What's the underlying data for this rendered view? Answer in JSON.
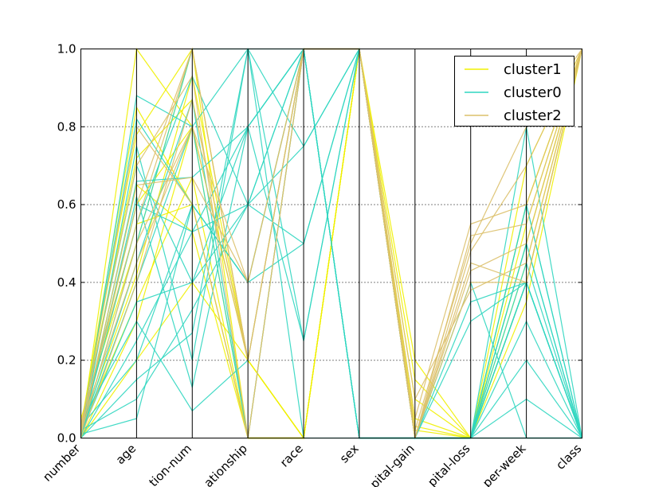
{
  "chart_data": {
    "type": "line",
    "subtype": "parallel-coordinates",
    "title": "",
    "categories": [
      "number",
      "age",
      "education-num",
      "relationship",
      "race",
      "sex",
      "capital-gain",
      "capital-loss",
      "hours-per-week",
      "class"
    ],
    "visible_category_labels": [
      "number",
      "age",
      "tion-num",
      "ationship",
      "race",
      "sex",
      "pital-gain",
      "pital-loss",
      "per-week",
      "class"
    ],
    "ylim": [
      0.0,
      1.0
    ],
    "yticks": [
      "0.0",
      "0.2",
      "0.4",
      "0.6",
      "0.8",
      "1.0"
    ],
    "grid": true,
    "legend_position": "top-right",
    "series": [
      {
        "name": "cluster1",
        "color": "#f0f000",
        "lines": [
          [
            0.01,
            1.0,
            0.8,
            0.0,
            0.0,
            1.0,
            0.0,
            0.0,
            0.4,
            1.0
          ],
          [
            0.03,
            0.78,
            1.0,
            0.2,
            0.0,
            1.0,
            0.02,
            0.0,
            0.6,
            1.0
          ],
          [
            0.02,
            0.55,
            0.6,
            0.0,
            0.0,
            1.0,
            0.15,
            0.0,
            0.4,
            1.0
          ],
          [
            0.0,
            0.3,
            0.8,
            0.2,
            0.0,
            1.0,
            0.0,
            0.0,
            0.5,
            1.0
          ],
          [
            0.01,
            0.65,
            0.53,
            0.0,
            0.0,
            1.0,
            0.05,
            0.0,
            0.45,
            1.0
          ],
          [
            0.02,
            0.42,
            0.93,
            0.2,
            0.0,
            1.0,
            0.0,
            0.0,
            0.6,
            1.0
          ],
          [
            0.03,
            0.85,
            0.6,
            0.0,
            0.0,
            1.0,
            0.1,
            0.0,
            0.4,
            1.0
          ],
          [
            0.0,
            0.2,
            0.4,
            0.2,
            0.0,
            1.0,
            0.0,
            0.0,
            0.35,
            1.0
          ],
          [
            0.05,
            0.5,
            1.0,
            0.0,
            0.0,
            1.0,
            0.2,
            0.0,
            0.5,
            1.0
          ],
          [
            0.01,
            0.6,
            0.8,
            0.2,
            0.0,
            1.0,
            0.0,
            0.0,
            0.4,
            1.0
          ],
          [
            0.02,
            0.35,
            0.67,
            0.0,
            0.0,
            1.0,
            0.03,
            0.0,
            0.55,
            1.0
          ],
          [
            0.03,
            0.72,
            0.87,
            0.2,
            0.0,
            1.0,
            0.0,
            0.0,
            0.7,
            1.0
          ]
        ]
      },
      {
        "name": "cluster0",
        "color": "#2fd6c0",
        "lines": [
          [
            0.0,
            0.88,
            0.8,
            1.0,
            1.0,
            0.0,
            0.0,
            0.0,
            0.4,
            0.0
          ],
          [
            0.02,
            0.6,
            0.53,
            0.8,
            1.0,
            0.0,
            0.0,
            0.4,
            0.0,
            0.0
          ],
          [
            0.01,
            0.35,
            0.4,
            0.6,
            0.75,
            1.0,
            0.0,
            0.0,
            0.6,
            0.0
          ],
          [
            0.03,
            0.2,
            0.6,
            0.4,
            1.0,
            0.0,
            0.0,
            0.0,
            0.4,
            0.0
          ],
          [
            0.0,
            0.75,
            0.2,
            1.0,
            0.25,
            1.0,
            0.0,
            0.0,
            0.0,
            0.0
          ],
          [
            0.01,
            0.45,
            0.87,
            0.0,
            1.0,
            0.0,
            0.0,
            0.0,
            0.5,
            0.0
          ],
          [
            0.02,
            0.1,
            0.33,
            0.6,
            0.5,
            1.0,
            0.0,
            0.3,
            0.4,
            0.0
          ],
          [
            0.0,
            0.66,
            0.67,
            0.8,
            1.0,
            0.0,
            0.0,
            0.0,
            0.2,
            0.0
          ],
          [
            0.04,
            0.3,
            0.07,
            0.2,
            1.0,
            1.0,
            0.0,
            0.0,
            0.4,
            0.0
          ],
          [
            0.01,
            0.5,
            1.0,
            1.0,
            0.0,
            0.0,
            0.0,
            0.0,
            0.8,
            0.0
          ],
          [
            0.02,
            0.82,
            0.6,
            0.4,
            1.0,
            1.0,
            0.0,
            0.0,
            0.45,
            0.0
          ],
          [
            0.0,
            0.25,
            0.53,
            0.6,
            1.0,
            0.0,
            0.0,
            0.0,
            0.1,
            0.0
          ],
          [
            0.03,
            0.7,
            0.4,
            0.8,
            0.25,
            1.0,
            0.0,
            0.0,
            0.4,
            0.0
          ],
          [
            0.01,
            0.4,
            0.8,
            0.0,
            1.0,
            0.0,
            0.0,
            0.0,
            0.6,
            0.0
          ],
          [
            0.0,
            0.15,
            0.27,
            1.0,
            0.75,
            1.0,
            0.0,
            0.0,
            0.3,
            0.0
          ],
          [
            0.02,
            0.55,
            0.93,
            0.6,
            1.0,
            0.0,
            0.0,
            0.35,
            0.4,
            0.0
          ],
          [
            0.01,
            0.05,
            0.6,
            0.4,
            0.5,
            1.0,
            0.0,
            0.0,
            0.5,
            0.0
          ],
          [
            0.0,
            0.62,
            0.13,
            0.8,
            1.0,
            1.0,
            0.0,
            0.0,
            0.0,
            0.0
          ]
        ]
      },
      {
        "name": "cluster2",
        "color": "#dcc06a",
        "lines": [
          [
            0.02,
            0.6,
            1.0,
            0.2,
            1.0,
            1.0,
            0.0,
            0.43,
            0.5,
            1.0
          ],
          [
            0.01,
            0.5,
            0.8,
            0.4,
            1.0,
            1.0,
            0.02,
            0.5,
            0.8,
            1.0
          ],
          [
            0.03,
            0.7,
            0.93,
            0.0,
            1.0,
            1.0,
            0.0,
            0.45,
            0.4,
            1.0
          ],
          [
            0.0,
            0.4,
            0.87,
            0.2,
            1.0,
            1.0,
            0.05,
            0.55,
            0.6,
            1.0
          ],
          [
            0.02,
            0.8,
            0.6,
            0.0,
            1.0,
            1.0,
            0.0,
            0.4,
            0.4,
            1.0
          ],
          [
            0.04,
            0.55,
            1.0,
            0.2,
            1.0,
            1.0,
            0.0,
            0.48,
            0.7,
            1.0
          ],
          [
            0.01,
            0.65,
            0.67,
            0.4,
            1.0,
            1.0,
            0.1,
            0.38,
            0.45,
            1.0
          ],
          [
            0.03,
            0.45,
            0.8,
            0.2,
            1.0,
            1.0,
            0.0,
            0.52,
            0.55,
            1.0
          ]
        ]
      }
    ]
  }
}
